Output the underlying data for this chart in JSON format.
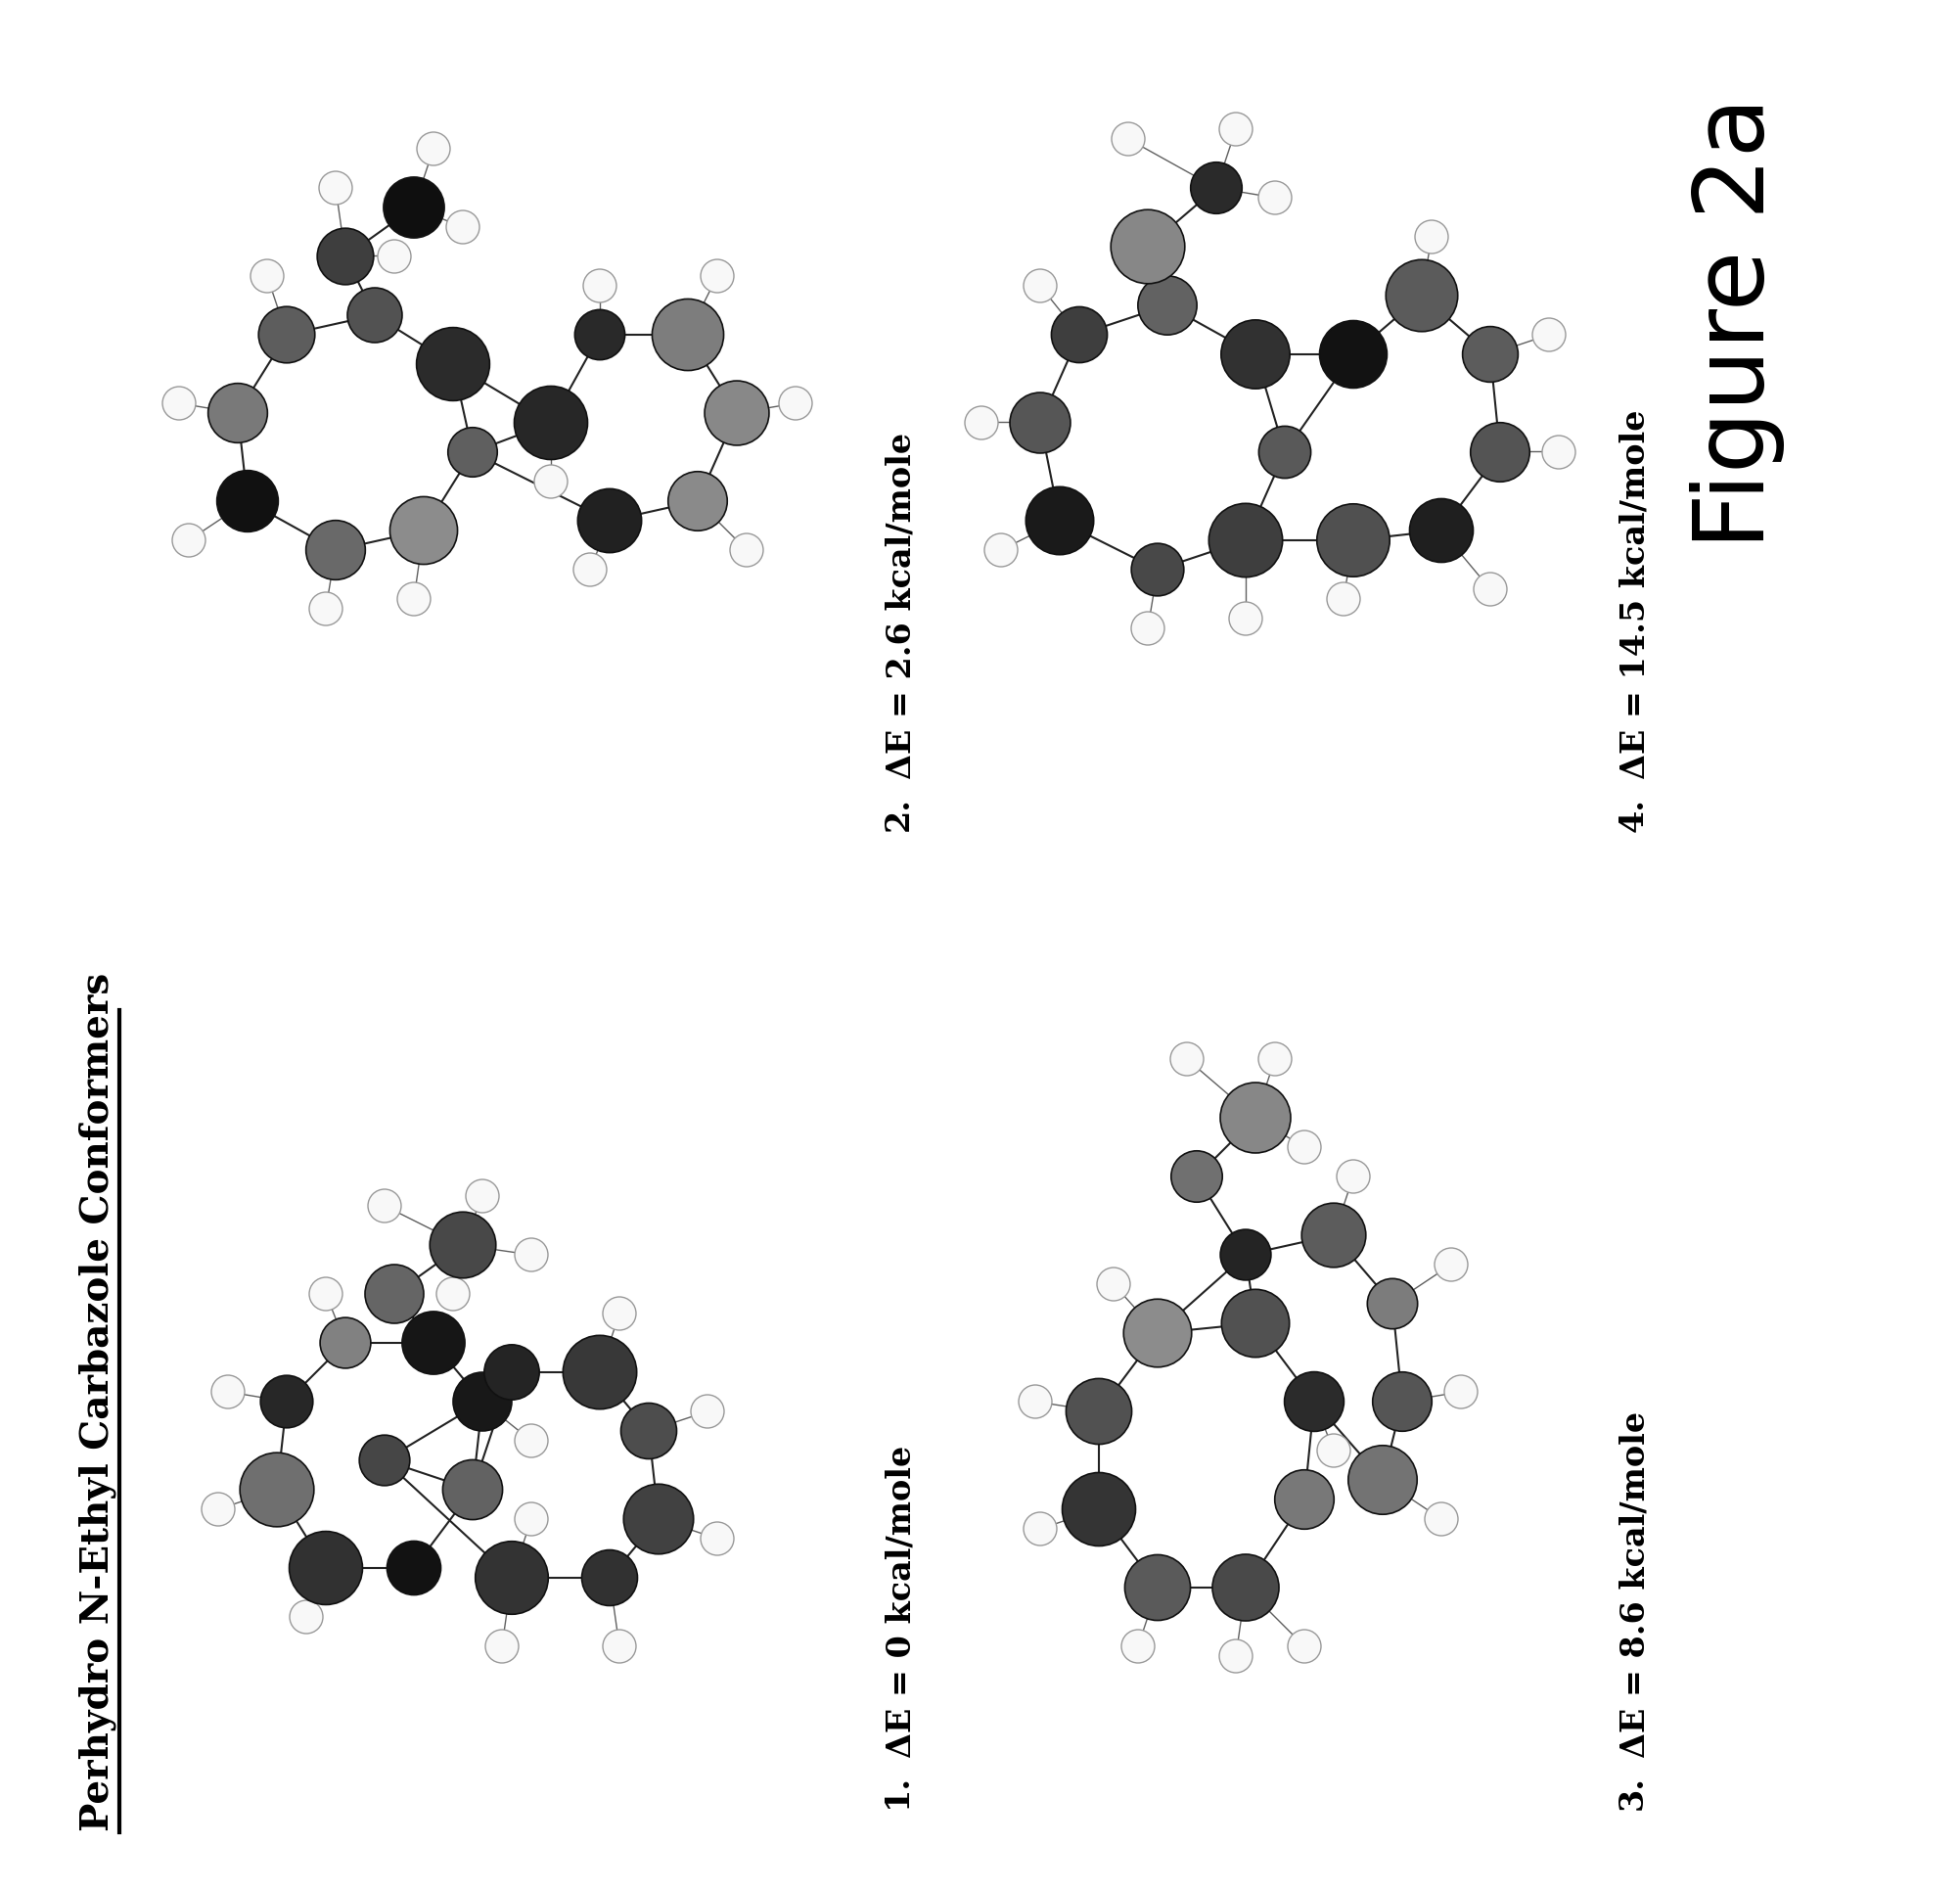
{
  "title": "Perhydro N-Ethyl Carbazole Conformers",
  "figure_label": "Figure 2a",
  "labels": [
    {
      "number": "1.",
      "delta_e": "ΔE = 0 kcal/mole"
    },
    {
      "number": "2.",
      "delta_e": "ΔE = 2.6 kcal/mole"
    },
    {
      "number": "3.",
      "delta_e": "ΔE = 8.6 kcal/mole"
    },
    {
      "number": "4.",
      "delta_e": "ΔE = 14.5 kcal/mole"
    }
  ],
  "bg_color": "#ffffff",
  "text_color": "#000000",
  "title_fontsize": 28,
  "label_fontsize": 24,
  "figure_label_fontsize": 72,
  "fig_width": 19.32,
  "fig_height": 20.03
}
